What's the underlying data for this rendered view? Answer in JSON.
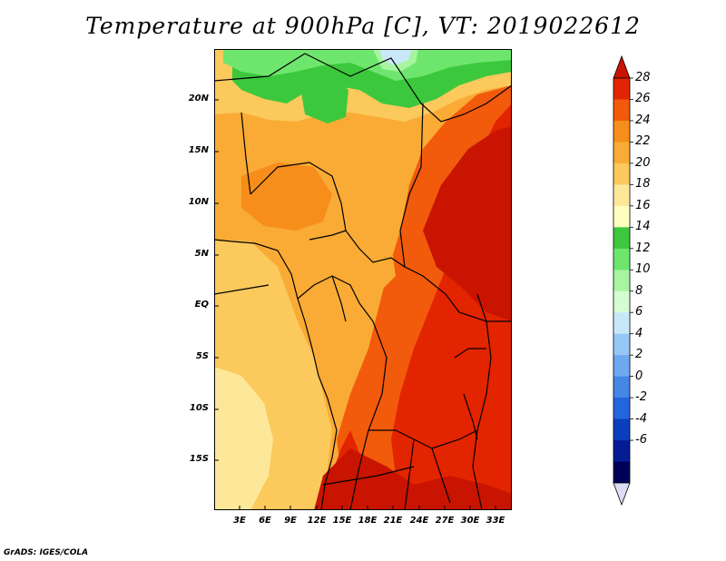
{
  "title": "Temperature at 900hPa [C], VT: 2019022612",
  "credit": "GrADS: IGES/COLA",
  "map": {
    "lat_labels": [
      "20N",
      "15N",
      "10N",
      "5N",
      "EQ",
      "5S",
      "10S",
      "15S"
    ],
    "lon_labels": [
      "3E",
      "6E",
      "9E",
      "12E",
      "15E",
      "18E",
      "21E",
      "24E",
      "27E",
      "30E",
      "33E"
    ]
  },
  "colorbar": {
    "labels": [
      "28",
      "26",
      "24",
      "22",
      "20",
      "18",
      "16",
      "14",
      "12",
      "10",
      "8",
      "6",
      "4",
      "2",
      "0",
      "-2",
      "-4",
      "-6"
    ],
    "colors": [
      "#c81400",
      "#e32400",
      "#f25a0c",
      "#f78d1a",
      "#f9ab35",
      "#fbc95c",
      "#fde89a",
      "#fefec0",
      "#3cc83c",
      "#6ee66e",
      "#a8f4a0",
      "#d6fcd2",
      "#c8e8fa",
      "#96c8f6",
      "#6ea8f0",
      "#4686e6",
      "#2464dc",
      "#0a3ebe",
      "#061c96",
      "#00005a",
      "#dcdcf6"
    ]
  }
}
